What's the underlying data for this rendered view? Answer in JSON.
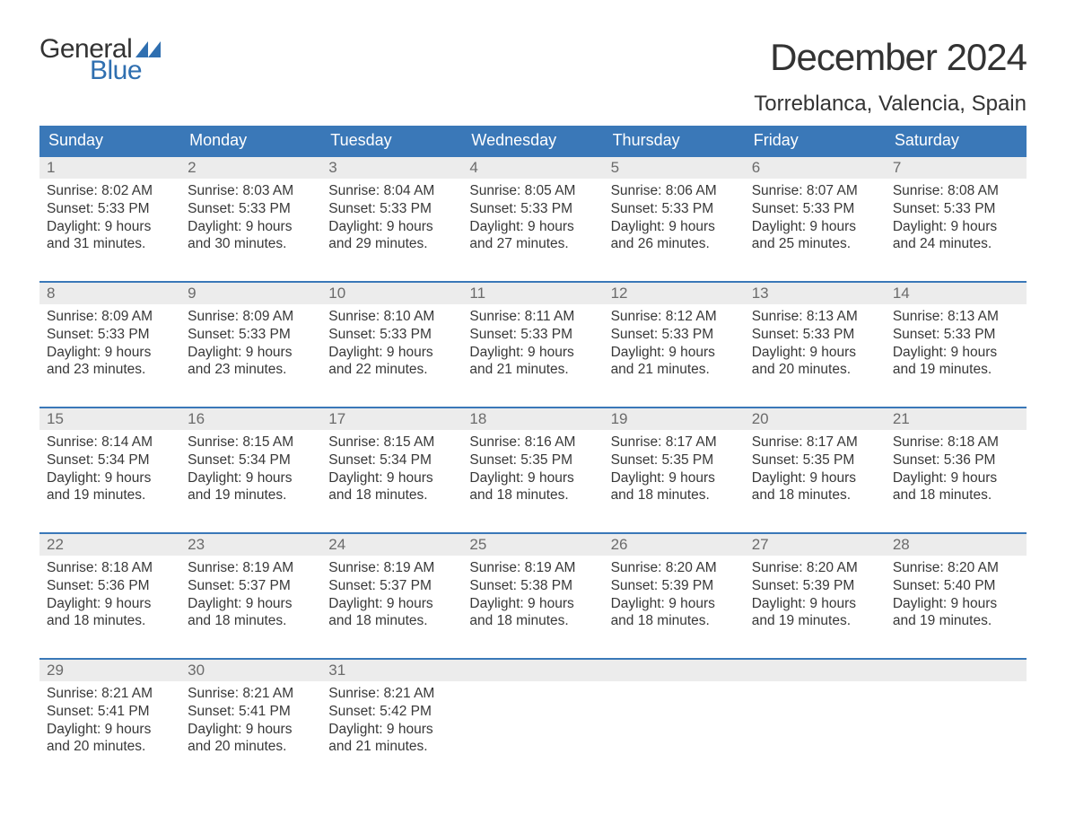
{
  "logo": {
    "text_general": "General",
    "text_blue": "Blue",
    "flag_color": "#2f6fb0"
  },
  "title": "December 2024",
  "location": "Torreblanca, Valencia, Spain",
  "colors": {
    "header_bg": "#3a78b8",
    "header_text": "#ffffff",
    "week_border": "#3a78b8",
    "daynum_bg": "#ececec",
    "daynum_text": "#6b6b6b",
    "body_text": "#383838",
    "page_bg": "#ffffff"
  },
  "typography": {
    "title_fontsize": 42,
    "location_fontsize": 24,
    "dow_fontsize": 18,
    "daynum_fontsize": 17,
    "body_fontsize": 15.5,
    "logo_fontsize": 30
  },
  "days_of_week": [
    "Sunday",
    "Monday",
    "Tuesday",
    "Wednesday",
    "Thursday",
    "Friday",
    "Saturday"
  ],
  "labels": {
    "sunrise": "Sunrise: ",
    "sunset": "Sunset: ",
    "daylight_prefix": "Daylight: ",
    "daylight_and": " and "
  },
  "weeks": [
    [
      {
        "n": "1",
        "sunrise": "8:02 AM",
        "sunset": "5:33 PM",
        "dl_h": "9 hours",
        "dl_m": "31 minutes."
      },
      {
        "n": "2",
        "sunrise": "8:03 AM",
        "sunset": "5:33 PM",
        "dl_h": "9 hours",
        "dl_m": "30 minutes."
      },
      {
        "n": "3",
        "sunrise": "8:04 AM",
        "sunset": "5:33 PM",
        "dl_h": "9 hours",
        "dl_m": "29 minutes."
      },
      {
        "n": "4",
        "sunrise": "8:05 AM",
        "sunset": "5:33 PM",
        "dl_h": "9 hours",
        "dl_m": "27 minutes."
      },
      {
        "n": "5",
        "sunrise": "8:06 AM",
        "sunset": "5:33 PM",
        "dl_h": "9 hours",
        "dl_m": "26 minutes."
      },
      {
        "n": "6",
        "sunrise": "8:07 AM",
        "sunset": "5:33 PM",
        "dl_h": "9 hours",
        "dl_m": "25 minutes."
      },
      {
        "n": "7",
        "sunrise": "8:08 AM",
        "sunset": "5:33 PM",
        "dl_h": "9 hours",
        "dl_m": "24 minutes."
      }
    ],
    [
      {
        "n": "8",
        "sunrise": "8:09 AM",
        "sunset": "5:33 PM",
        "dl_h": "9 hours",
        "dl_m": "23 minutes."
      },
      {
        "n": "9",
        "sunrise": "8:09 AM",
        "sunset": "5:33 PM",
        "dl_h": "9 hours",
        "dl_m": "23 minutes."
      },
      {
        "n": "10",
        "sunrise": "8:10 AM",
        "sunset": "5:33 PM",
        "dl_h": "9 hours",
        "dl_m": "22 minutes."
      },
      {
        "n": "11",
        "sunrise": "8:11 AM",
        "sunset": "5:33 PM",
        "dl_h": "9 hours",
        "dl_m": "21 minutes."
      },
      {
        "n": "12",
        "sunrise": "8:12 AM",
        "sunset": "5:33 PM",
        "dl_h": "9 hours",
        "dl_m": "21 minutes."
      },
      {
        "n": "13",
        "sunrise": "8:13 AM",
        "sunset": "5:33 PM",
        "dl_h": "9 hours",
        "dl_m": "20 minutes."
      },
      {
        "n": "14",
        "sunrise": "8:13 AM",
        "sunset": "5:33 PM",
        "dl_h": "9 hours",
        "dl_m": "19 minutes."
      }
    ],
    [
      {
        "n": "15",
        "sunrise": "8:14 AM",
        "sunset": "5:34 PM",
        "dl_h": "9 hours",
        "dl_m": "19 minutes."
      },
      {
        "n": "16",
        "sunrise": "8:15 AM",
        "sunset": "5:34 PM",
        "dl_h": "9 hours",
        "dl_m": "19 minutes."
      },
      {
        "n": "17",
        "sunrise": "8:15 AM",
        "sunset": "5:34 PM",
        "dl_h": "9 hours",
        "dl_m": "18 minutes."
      },
      {
        "n": "18",
        "sunrise": "8:16 AM",
        "sunset": "5:35 PM",
        "dl_h": "9 hours",
        "dl_m": "18 minutes."
      },
      {
        "n": "19",
        "sunrise": "8:17 AM",
        "sunset": "5:35 PM",
        "dl_h": "9 hours",
        "dl_m": "18 minutes."
      },
      {
        "n": "20",
        "sunrise": "8:17 AM",
        "sunset": "5:35 PM",
        "dl_h": "9 hours",
        "dl_m": "18 minutes."
      },
      {
        "n": "21",
        "sunrise": "8:18 AM",
        "sunset": "5:36 PM",
        "dl_h": "9 hours",
        "dl_m": "18 minutes."
      }
    ],
    [
      {
        "n": "22",
        "sunrise": "8:18 AM",
        "sunset": "5:36 PM",
        "dl_h": "9 hours",
        "dl_m": "18 minutes."
      },
      {
        "n": "23",
        "sunrise": "8:19 AM",
        "sunset": "5:37 PM",
        "dl_h": "9 hours",
        "dl_m": "18 minutes."
      },
      {
        "n": "24",
        "sunrise": "8:19 AM",
        "sunset": "5:37 PM",
        "dl_h": "9 hours",
        "dl_m": "18 minutes."
      },
      {
        "n": "25",
        "sunrise": "8:19 AM",
        "sunset": "5:38 PM",
        "dl_h": "9 hours",
        "dl_m": "18 minutes."
      },
      {
        "n": "26",
        "sunrise": "8:20 AM",
        "sunset": "5:39 PM",
        "dl_h": "9 hours",
        "dl_m": "18 minutes."
      },
      {
        "n": "27",
        "sunrise": "8:20 AM",
        "sunset": "5:39 PM",
        "dl_h": "9 hours",
        "dl_m": "19 minutes."
      },
      {
        "n": "28",
        "sunrise": "8:20 AM",
        "sunset": "5:40 PM",
        "dl_h": "9 hours",
        "dl_m": "19 minutes."
      }
    ],
    [
      {
        "n": "29",
        "sunrise": "8:21 AM",
        "sunset": "5:41 PM",
        "dl_h": "9 hours",
        "dl_m": "20 minutes."
      },
      {
        "n": "30",
        "sunrise": "8:21 AM",
        "sunset": "5:41 PM",
        "dl_h": "9 hours",
        "dl_m": "20 minutes."
      },
      {
        "n": "31",
        "sunrise": "8:21 AM",
        "sunset": "5:42 PM",
        "dl_h": "9 hours",
        "dl_m": "21 minutes."
      },
      {
        "empty": true
      },
      {
        "empty": true
      },
      {
        "empty": true
      },
      {
        "empty": true
      }
    ]
  ]
}
